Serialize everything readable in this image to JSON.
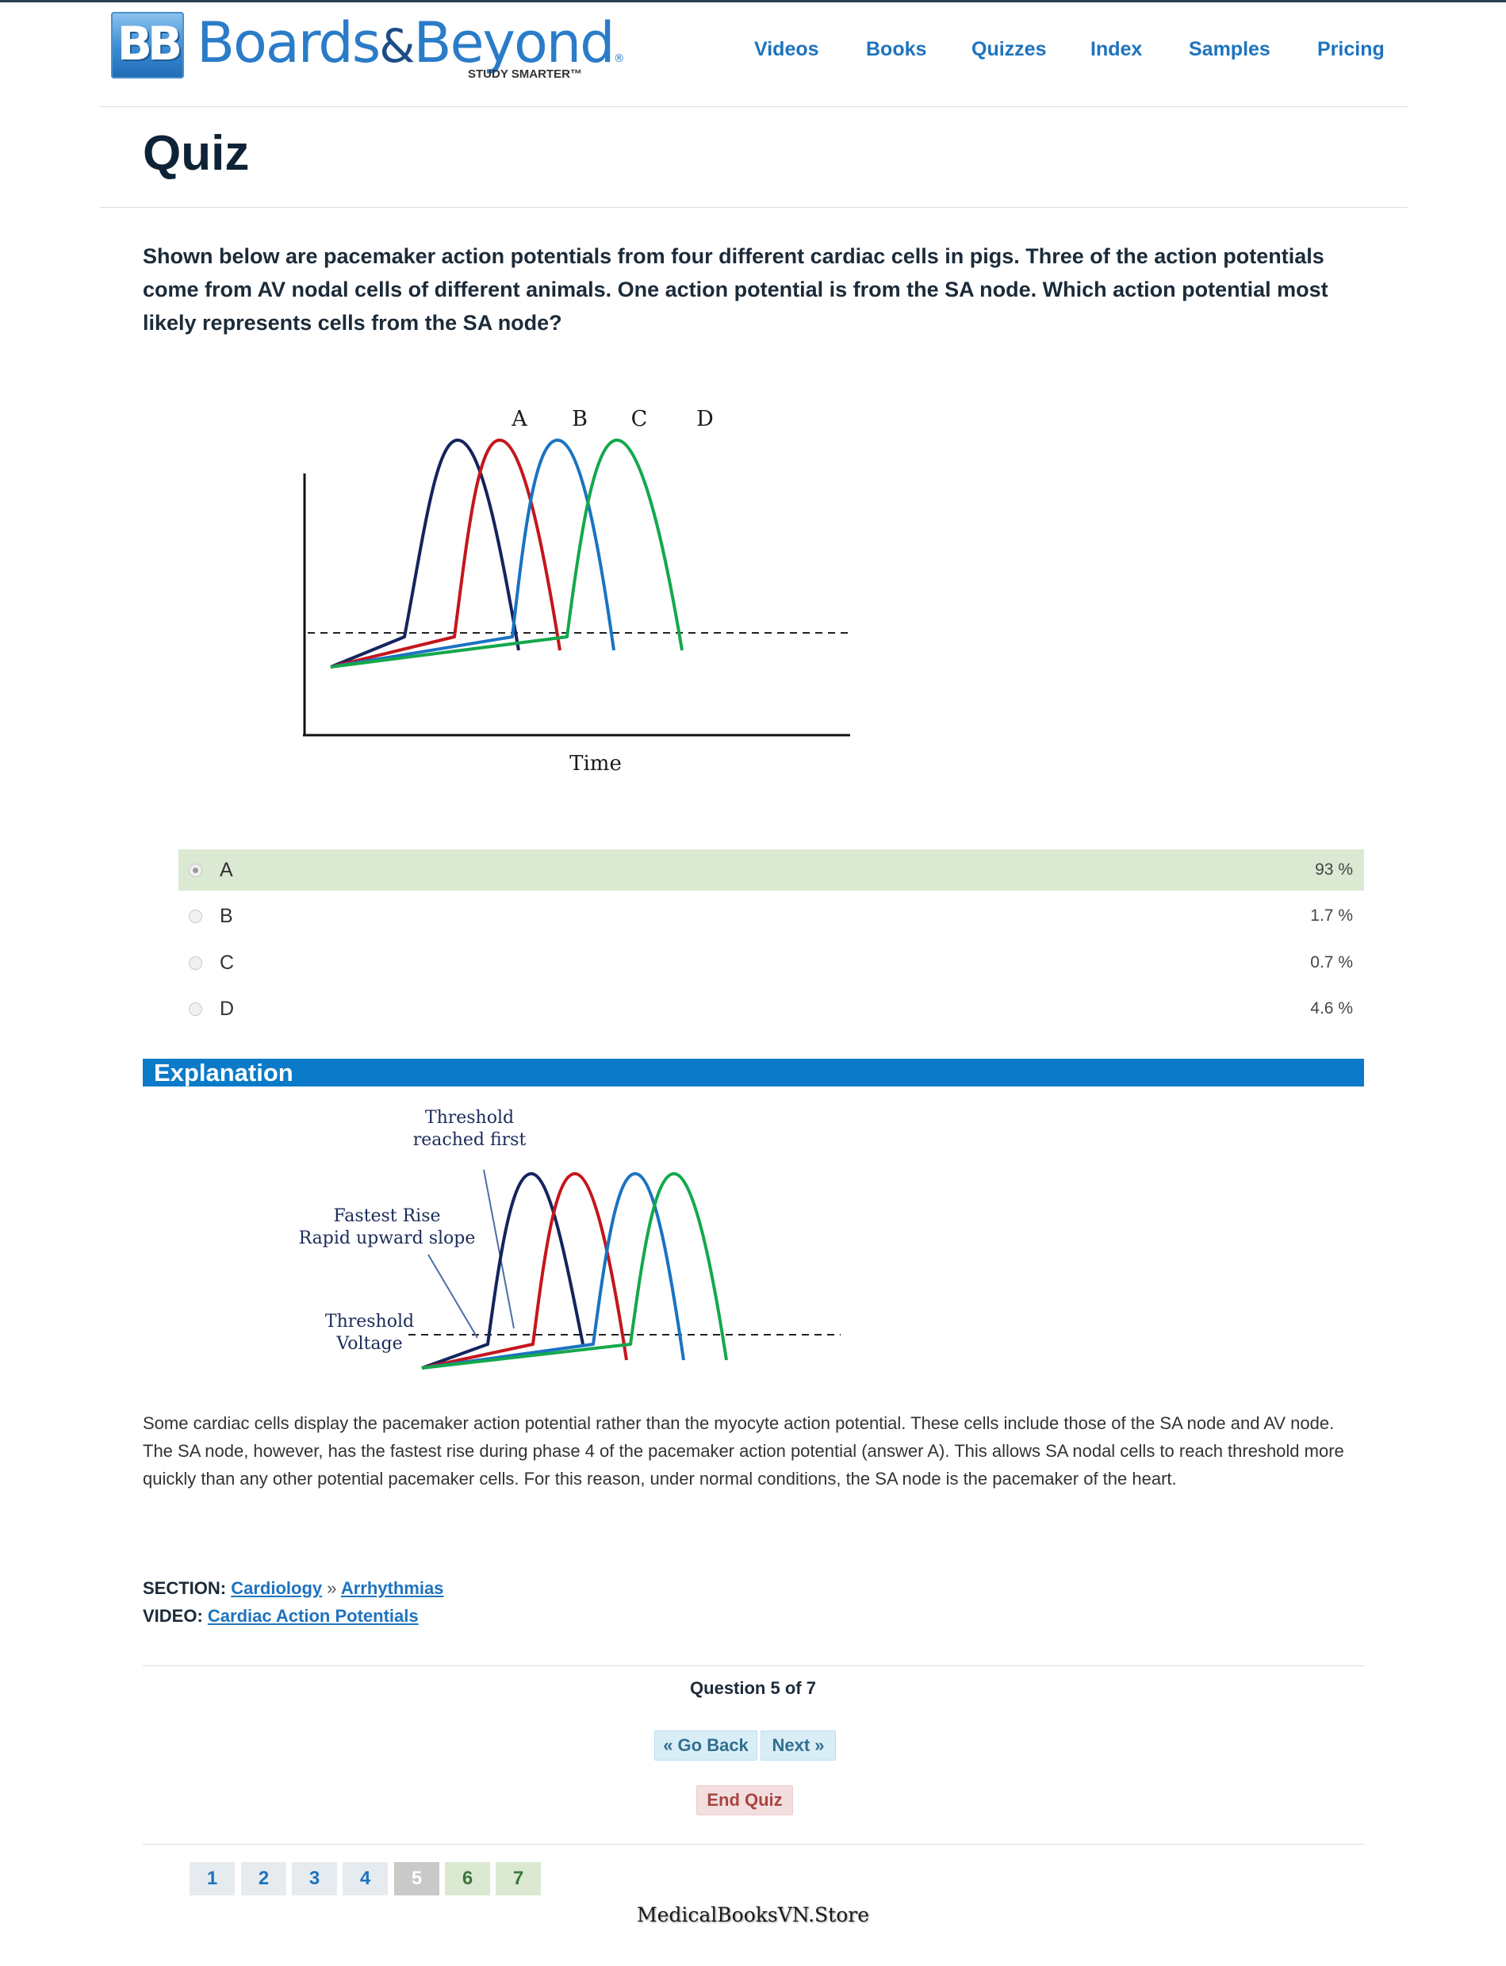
{
  "header": {
    "logo_mark": "BB",
    "logo_word1": "Boards",
    "logo_amp": "&",
    "logo_word2": "Beyond",
    "logo_reg": "®",
    "logo_tagline": "STUDY SMARTER™",
    "nav": [
      "Videos",
      "Books",
      "Quizzes",
      "Index",
      "Samples",
      "Pricing"
    ]
  },
  "page_title": "Quiz",
  "question": "Shown below are pacemaker action potentials from four different cardiac cells in pigs. Three of the action potentials come from AV nodal cells of different animals. One action potential is from the SA node. Which action potential most likely represents cells from the SA node?",
  "figure1": {
    "curve_labels": [
      "A",
      "B",
      "C",
      "D"
    ],
    "x_axis_label": "Time"
  },
  "answers": [
    {
      "label": "A",
      "percent": "93 %",
      "selected": true,
      "correct": true
    },
    {
      "label": "B",
      "percent": "1.7 %",
      "selected": false,
      "correct": false
    },
    {
      "label": "C",
      "percent": "0.7 %",
      "selected": false,
      "correct": false
    },
    {
      "label": "D",
      "percent": "4.6 %",
      "selected": false,
      "correct": false
    }
  ],
  "explanation": {
    "heading": "Explanation",
    "figure_notes": {
      "threshold_reached_1": "Threshold",
      "threshold_reached_2": "reached first",
      "fastest_rise_1": "Fastest Rise",
      "fastest_rise_2": "Rapid upward slope",
      "threshold_voltage_1": "Threshold",
      "threshold_voltage_2": "Voltage"
    },
    "text": "Some cardiac cells display the pacemaker action potential rather than the myocyte action potential. These cells include those of the SA node and AV node. The SA node, however, has the fastest rise during phase 4 of the pacemaker action potential (answer A). This allows SA nodal cells to reach threshold more quickly than any other potential pacemaker cells. For this reason, under normal conditions, the SA node is the pacemaker of the heart."
  },
  "section": {
    "section_label": "SECTION:",
    "section_link": "Cardiology",
    "separator": "»",
    "subsection_link": "Arrhythmias",
    "video_label": "VIDEO:",
    "video_link": "Cardiac Action Potentials"
  },
  "navigation": {
    "counter": "Question 5 of 7",
    "go_back": "« Go Back",
    "next": "Next »",
    "end_quiz": "End Quiz",
    "pages": [
      "1",
      "2",
      "3",
      "4",
      "5",
      "6",
      "7"
    ],
    "current_page": "5"
  },
  "watermark": "MedicalBooksVN.Store",
  "colors": {
    "curve_a": "#14245e",
    "curve_b": "#c4161c",
    "curve_c": "#1a73c2",
    "curve_d": "#14a84c",
    "accent": "#0b7ac8",
    "correct_row": "#dbe9d2"
  }
}
